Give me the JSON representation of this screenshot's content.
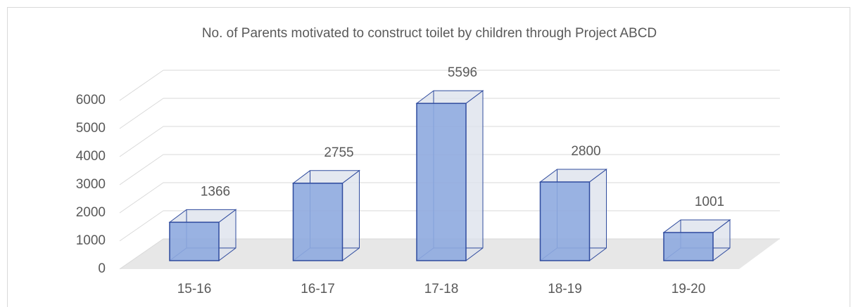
{
  "chart_data": {
    "type": "bar3d",
    "title": "No. of Parents motivated to construct toilet by children through Project ABCD",
    "categories": [
      "15-16",
      "16-17",
      "17-18",
      "18-19",
      "19-20"
    ],
    "values": [
      1366,
      2755,
      5596,
      2800,
      1001
    ],
    "color": "#8eaadf",
    "ylim": [
      0,
      6000
    ],
    "yticks": [
      0,
      1000,
      2000,
      3000,
      4000,
      5000,
      6000
    ],
    "grid": true
  }
}
